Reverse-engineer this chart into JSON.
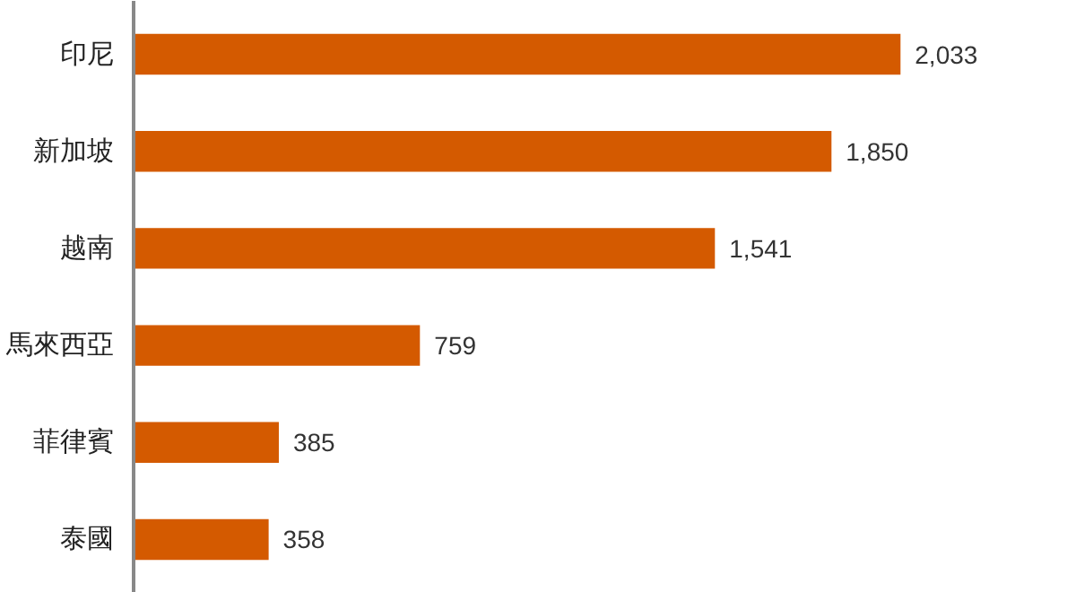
{
  "chart_data": {
    "type": "bar",
    "orientation": "horizontal",
    "categories": [
      "印尼",
      "新加坡",
      "越南",
      "馬來西亞",
      "菲律賓",
      "泰國"
    ],
    "values": [
      2033,
      1850,
      1541,
      759,
      385,
      358
    ],
    "value_labels": [
      "2,033",
      "1,850",
      "1,541",
      "759",
      "385",
      "358"
    ],
    "color": "#d45a00",
    "grid": false,
    "tick_labels": "y"
  }
}
